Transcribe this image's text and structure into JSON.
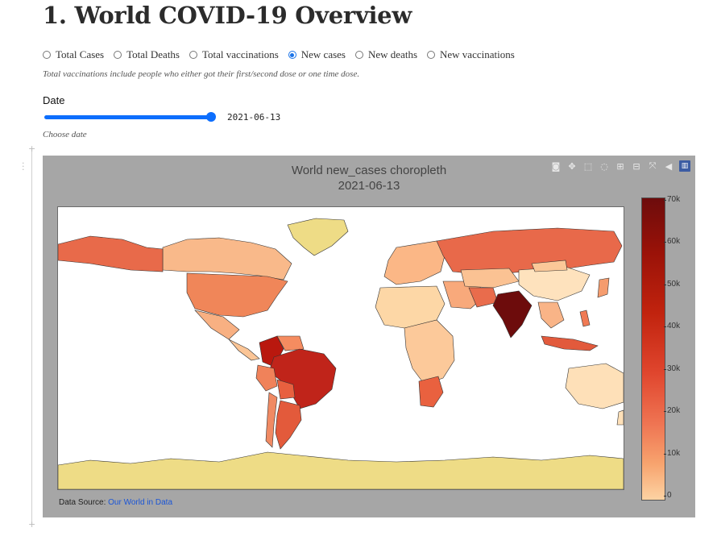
{
  "page": {
    "title": "1. World COVID-19 Overview",
    "radios": [
      {
        "label": "Total Cases",
        "selected": false
      },
      {
        "label": "Total Deaths",
        "selected": false
      },
      {
        "label": "Total vaccinations",
        "selected": false
      },
      {
        "label": "New cases",
        "selected": true
      },
      {
        "label": "New deaths",
        "selected": false
      },
      {
        "label": "New vaccinations",
        "selected": false
      }
    ],
    "note": "Total vaccinations include people who either got their first/second dose or one time dose.",
    "date_label": "Date",
    "date_value": "2021-06-13",
    "slider_position": 1.0,
    "choose_hint": "Choose date"
  },
  "figure": {
    "title_line1": "World new_cases choropleth",
    "title_line2": "2021-06-13",
    "source_prefix": "Data Source: ",
    "source_link": "Our World in Data",
    "modebar_icons": [
      "camera-icon",
      "pan-icon",
      "box-select-icon",
      "lasso-icon",
      "zoom-in-icon",
      "zoom-out-icon",
      "autoscale-icon",
      "reset-icon",
      "plotly-logo-icon"
    ],
    "colorbar_ticks": [
      "70k",
      "60k",
      "50k",
      "40k",
      "30k",
      "20k",
      "10k",
      "0"
    ]
  },
  "colors": {
    "accent": "#0d6efd",
    "figure_bg": "#a6a6a6",
    "land_none": "#eedc86",
    "max": "#6d0c0c",
    "min": "#fdd3a3"
  }
}
